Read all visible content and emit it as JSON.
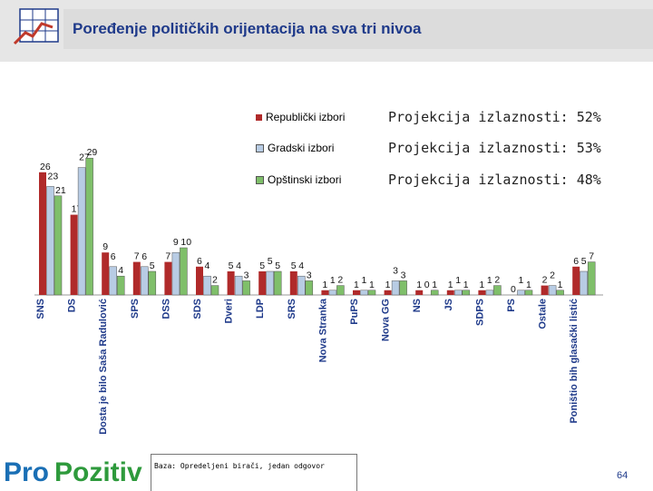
{
  "header": {
    "title": "Poređenje političkih orijentacija na sva tri nivoa"
  },
  "legend": [
    {
      "label": "Republički izbori",
      "projection": "Projekcija izlaznosti: 52%",
      "color": "#b02a2a"
    },
    {
      "label": "Gradski izbori",
      "projection": "Projekcija izlaznosti: 53%",
      "color": "#b8cce4"
    },
    {
      "label": "Opštinski izbori",
      "projection": "Projekcija izlaznosti: 48%",
      "color": "#7fbf6a"
    }
  ],
  "footer": {
    "logo_text_pro": "Pro",
    "logo_text_pozitiv": "Pozitiv",
    "note": "Baza: Opredeljeni birači, jedan odgovor",
    "page": "64"
  },
  "chart_data": {
    "type": "bar",
    "title": "Poređenje političkih orijentacija na sva tri nivoa",
    "categories": [
      "SNS",
      "DS",
      "Dosta je bilo Saša Radulović",
      "SPS",
      "DSS",
      "SDS",
      "Dveri",
      "LDP",
      "SRS",
      "Nova Stranka",
      "PuPS",
      "Nova GG",
      "NS",
      "JS",
      "SDPS",
      "PS",
      "Ostale",
      "Poništio bih glasački listić"
    ],
    "series": [
      {
        "name": "Republički izbori",
        "values": [
          26,
          17,
          9,
          7,
          7,
          6,
          5,
          5,
          5,
          1,
          1,
          1,
          1,
          1,
          1,
          0,
          2,
          6
        ]
      },
      {
        "name": "Gradski izbori",
        "values": [
          23,
          27,
          6,
          6,
          9,
          4,
          4,
          5,
          4,
          1,
          1,
          3,
          0,
          1,
          1,
          1,
          2,
          5
        ]
      },
      {
        "name": "Opštinski izbori",
        "values": [
          21,
          29,
          4,
          5,
          10,
          2,
          3,
          5,
          3,
          2,
          1,
          3,
          1,
          1,
          2,
          1,
          1,
          7
        ]
      }
    ],
    "value_labels": [
      [
        "26",
        "23",
        "21"
      ],
      [
        "17",
        "27",
        "29"
      ],
      [
        "9",
        "6",
        "4"
      ],
      [
        "7",
        "6",
        "5"
      ],
      [
        "7",
        "9",
        "10"
      ],
      [
        "6",
        "4",
        "2"
      ],
      [
        "5",
        "4",
        "3"
      ],
      [
        "5",
        "5",
        "5"
      ],
      [
        "5",
        "4",
        "3"
      ],
      [
        "1",
        "1",
        "2"
      ],
      [
        "1",
        "1",
        "1"
      ],
      [
        "1",
        "3",
        "3"
      ],
      [
        "1",
        "0",
        "1"
      ],
      [
        "1",
        "1",
        "1"
      ],
      [
        "1",
        "1",
        "2"
      ],
      [
        "0",
        "1",
        "1"
      ],
      [
        "2",
        "2",
        "1"
      ],
      [
        "6",
        "5",
        "7"
      ]
    ],
    "ylim": [
      0,
      30
    ],
    "xlabel": "",
    "ylabel": "",
    "grid": false
  }
}
